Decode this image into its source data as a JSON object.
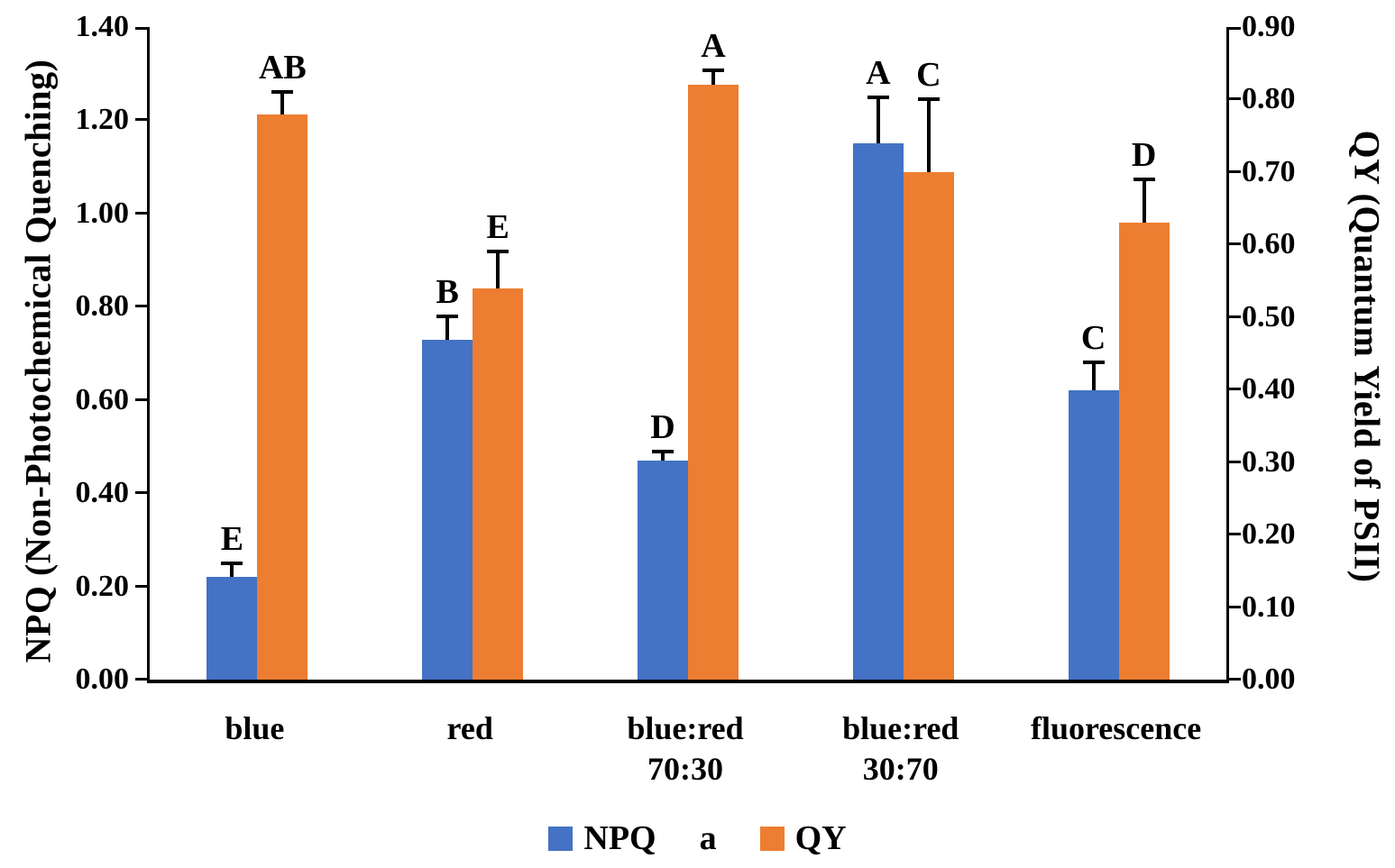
{
  "figure": {
    "background": "#ffffff",
    "text_color": "#000000"
  },
  "chart_data": {
    "type": "bar",
    "subtype": "grouped-dual-axis",
    "grid": false,
    "categories": [
      "blue",
      "red",
      "blue:red\n70:30",
      "blue:red\n30:70",
      "fluorescence"
    ],
    "series": [
      {
        "name": "NPQ",
        "axis": "left",
        "color": "#4472C4",
        "values": [
          0.22,
          0.73,
          0.47,
          1.15,
          0.62
        ],
        "errors_upper": [
          0.03,
          0.05,
          0.02,
          0.1,
          0.06
        ],
        "sig_letters": [
          "E",
          "B",
          "D",
          "A",
          "C"
        ]
      },
      {
        "name": "QY",
        "axis": "right",
        "color": "#ED7D31",
        "values": [
          0.78,
          0.54,
          0.82,
          0.7,
          0.63
        ],
        "errors_upper": [
          0.03,
          0.05,
          0.02,
          0.1,
          0.06
        ],
        "sig_letters": [
          "AB",
          "E",
          "A",
          "C",
          "D"
        ]
      }
    ],
    "left_axis": {
      "label": "NPQ (Non-Photochemical Quenching)",
      "min": 0.0,
      "max": 1.4,
      "step": 0.2,
      "tick_labels": [
        "0.00",
        "0.20",
        "0.40",
        "0.60",
        "0.80",
        "1.00",
        "1.20",
        "1.40"
      ]
    },
    "right_axis": {
      "label": "QY (Quantum Yield of PSII)",
      "min": 0.0,
      "max": 0.9,
      "step": 0.1,
      "tick_labels": [
        "0.00",
        "0.10",
        "0.20",
        "0.30",
        "0.40",
        "0.50",
        "0.60",
        "0.70",
        "0.80",
        "0.90"
      ]
    },
    "legend": {
      "position": "bottom",
      "entries": [
        {
          "label": "NPQ",
          "swatch": "#4472C4"
        },
        {
          "label": "a",
          "swatch": null
        },
        {
          "label": "QY",
          "swatch": "#ED7D31"
        }
      ]
    }
  }
}
